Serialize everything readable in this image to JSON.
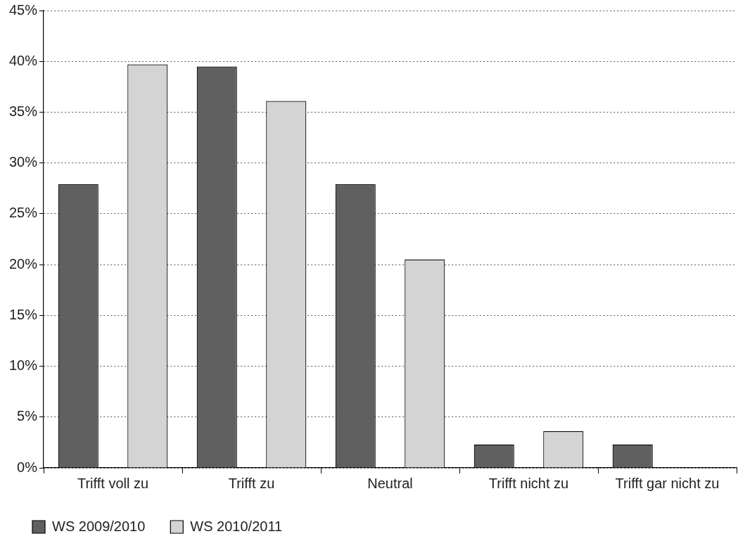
{
  "chart_data": {
    "type": "bar",
    "categories": [
      "Trifft voll zu",
      "Trifft zu",
      "Neutral",
      "Trifft nicht zu",
      "Trifft gar nicht zu"
    ],
    "series": [
      {
        "name": "WS 2009/2010",
        "color": "#606060",
        "values": [
          27.9,
          39.5,
          27.9,
          2.3,
          2.3
        ]
      },
      {
        "name": "WS 2010/2011",
        "color": "#d3d4d3",
        "values": [
          39.7,
          36.1,
          20.5,
          3.6,
          0
        ]
      }
    ],
    "ylim": [
      0,
      45
    ],
    "yticks": [
      {
        "value": 0,
        "label": "0%"
      },
      {
        "value": 5,
        "label": "5%"
      },
      {
        "value": 10,
        "label": "10%"
      },
      {
        "value": 15,
        "label": "15%"
      },
      {
        "value": 20,
        "label": "20%"
      },
      {
        "value": 25,
        "label": "25%"
      },
      {
        "value": 30,
        "label": "30%"
      },
      {
        "value": 35,
        "label": "35%"
      },
      {
        "value": 40,
        "label": "40%"
      },
      {
        "value": 45,
        "label": "45%"
      }
    ],
    "grid": "y",
    "legend": "bottom left"
  }
}
